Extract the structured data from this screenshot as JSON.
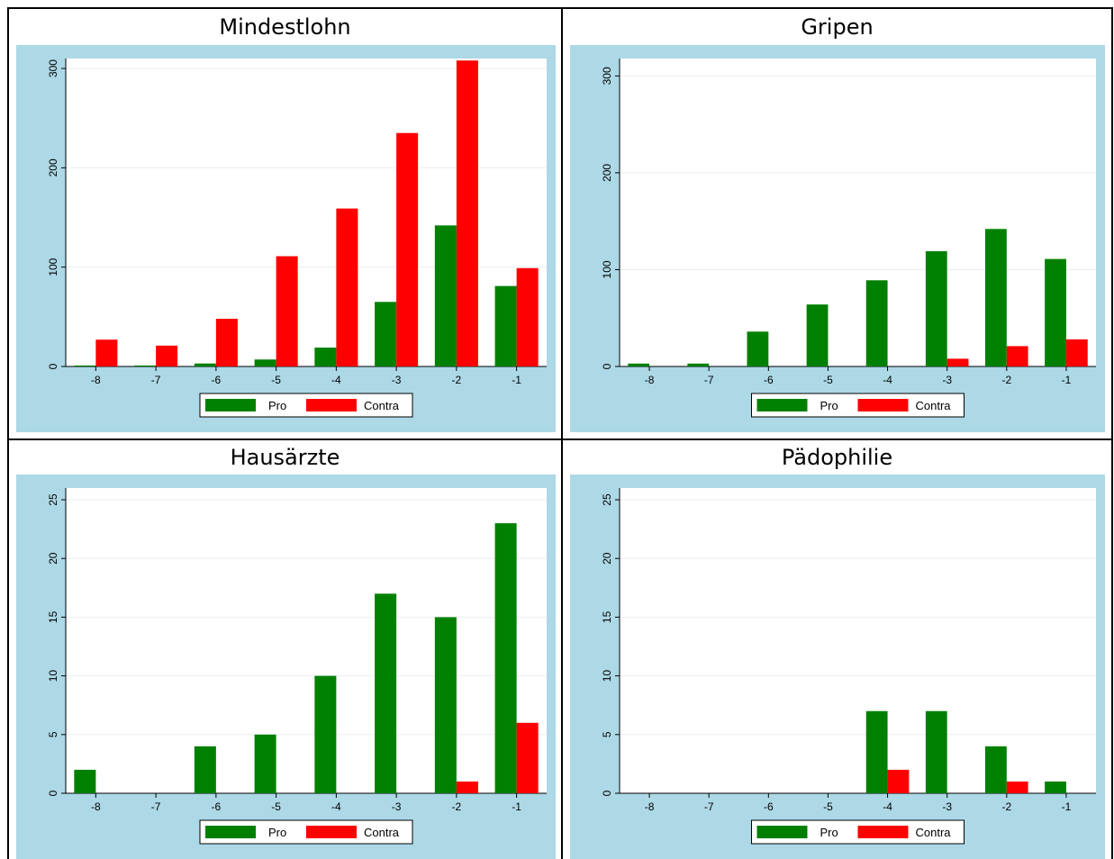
{
  "colors": {
    "pro": "#008000",
    "contra": "#ff0000",
    "panel_bg": "#add8e6",
    "plot_bg": "#ffffff",
    "gridline": "#e8eef2"
  },
  "legend": {
    "pro_label": "Pro",
    "contra_label": "Contra"
  },
  "chart_data": [
    {
      "type": "bar",
      "title": "Mindestlohn",
      "categories": [
        "-8",
        "-7",
        "-6",
        "-5",
        "-4",
        "-3",
        "-2",
        "-1"
      ],
      "ylim": [
        0,
        310
      ],
      "yticks": [
        0,
        100,
        200,
        300
      ],
      "grid": true,
      "legend_position": "bottom",
      "series": [
        {
          "name": "Pro",
          "values": [
            1,
            1,
            3,
            7,
            19,
            65,
            142,
            81
          ]
        },
        {
          "name": "Contra",
          "values": [
            27,
            21,
            48,
            111,
            159,
            235,
            308,
            99
          ]
        }
      ]
    },
    {
      "type": "bar",
      "title": "Gripen",
      "categories": [
        "-8",
        "-7",
        "-6",
        "-5",
        "-4",
        "-3",
        "-2",
        "-1"
      ],
      "ylim": [
        0,
        318
      ],
      "yticks": [
        0,
        100,
        200,
        300
      ],
      "grid": true,
      "legend_position": "bottom",
      "series": [
        {
          "name": "Pro",
          "values": [
            3,
            3,
            36,
            64,
            89,
            119,
            142,
            111
          ]
        },
        {
          "name": "Contra",
          "values": [
            0,
            0,
            0,
            0,
            0,
            8,
            21,
            28
          ]
        }
      ]
    },
    {
      "type": "bar",
      "title": "Hausärzte",
      "categories": [
        "-8",
        "-7",
        "-6",
        "-5",
        "-4",
        "-3",
        "-2",
        "-1"
      ],
      "ylim": [
        0,
        26
      ],
      "yticks": [
        0,
        5,
        10,
        15,
        20,
        25
      ],
      "grid": true,
      "legend_position": "bottom",
      "series": [
        {
          "name": "Pro",
          "values": [
            2,
            0,
            4,
            5,
            10,
            17,
            15,
            23
          ]
        },
        {
          "name": "Contra",
          "values": [
            0,
            0,
            0,
            0,
            0,
            0,
            1,
            6
          ]
        }
      ]
    },
    {
      "type": "bar",
      "title": "Pädophilie",
      "categories": [
        "-8",
        "-7",
        "-6",
        "-5",
        "-4",
        "-3",
        "-2",
        "-1"
      ],
      "ylim": [
        0,
        26
      ],
      "yticks": [
        0,
        5,
        10,
        15,
        20,
        25
      ],
      "grid": true,
      "legend_position": "bottom",
      "series": [
        {
          "name": "Pro",
          "values": [
            0,
            0,
            0,
            0,
            7,
            7,
            4,
            1
          ]
        },
        {
          "name": "Contra",
          "values": [
            0,
            0,
            0,
            0,
            2,
            0,
            1,
            0
          ]
        }
      ]
    }
  ]
}
